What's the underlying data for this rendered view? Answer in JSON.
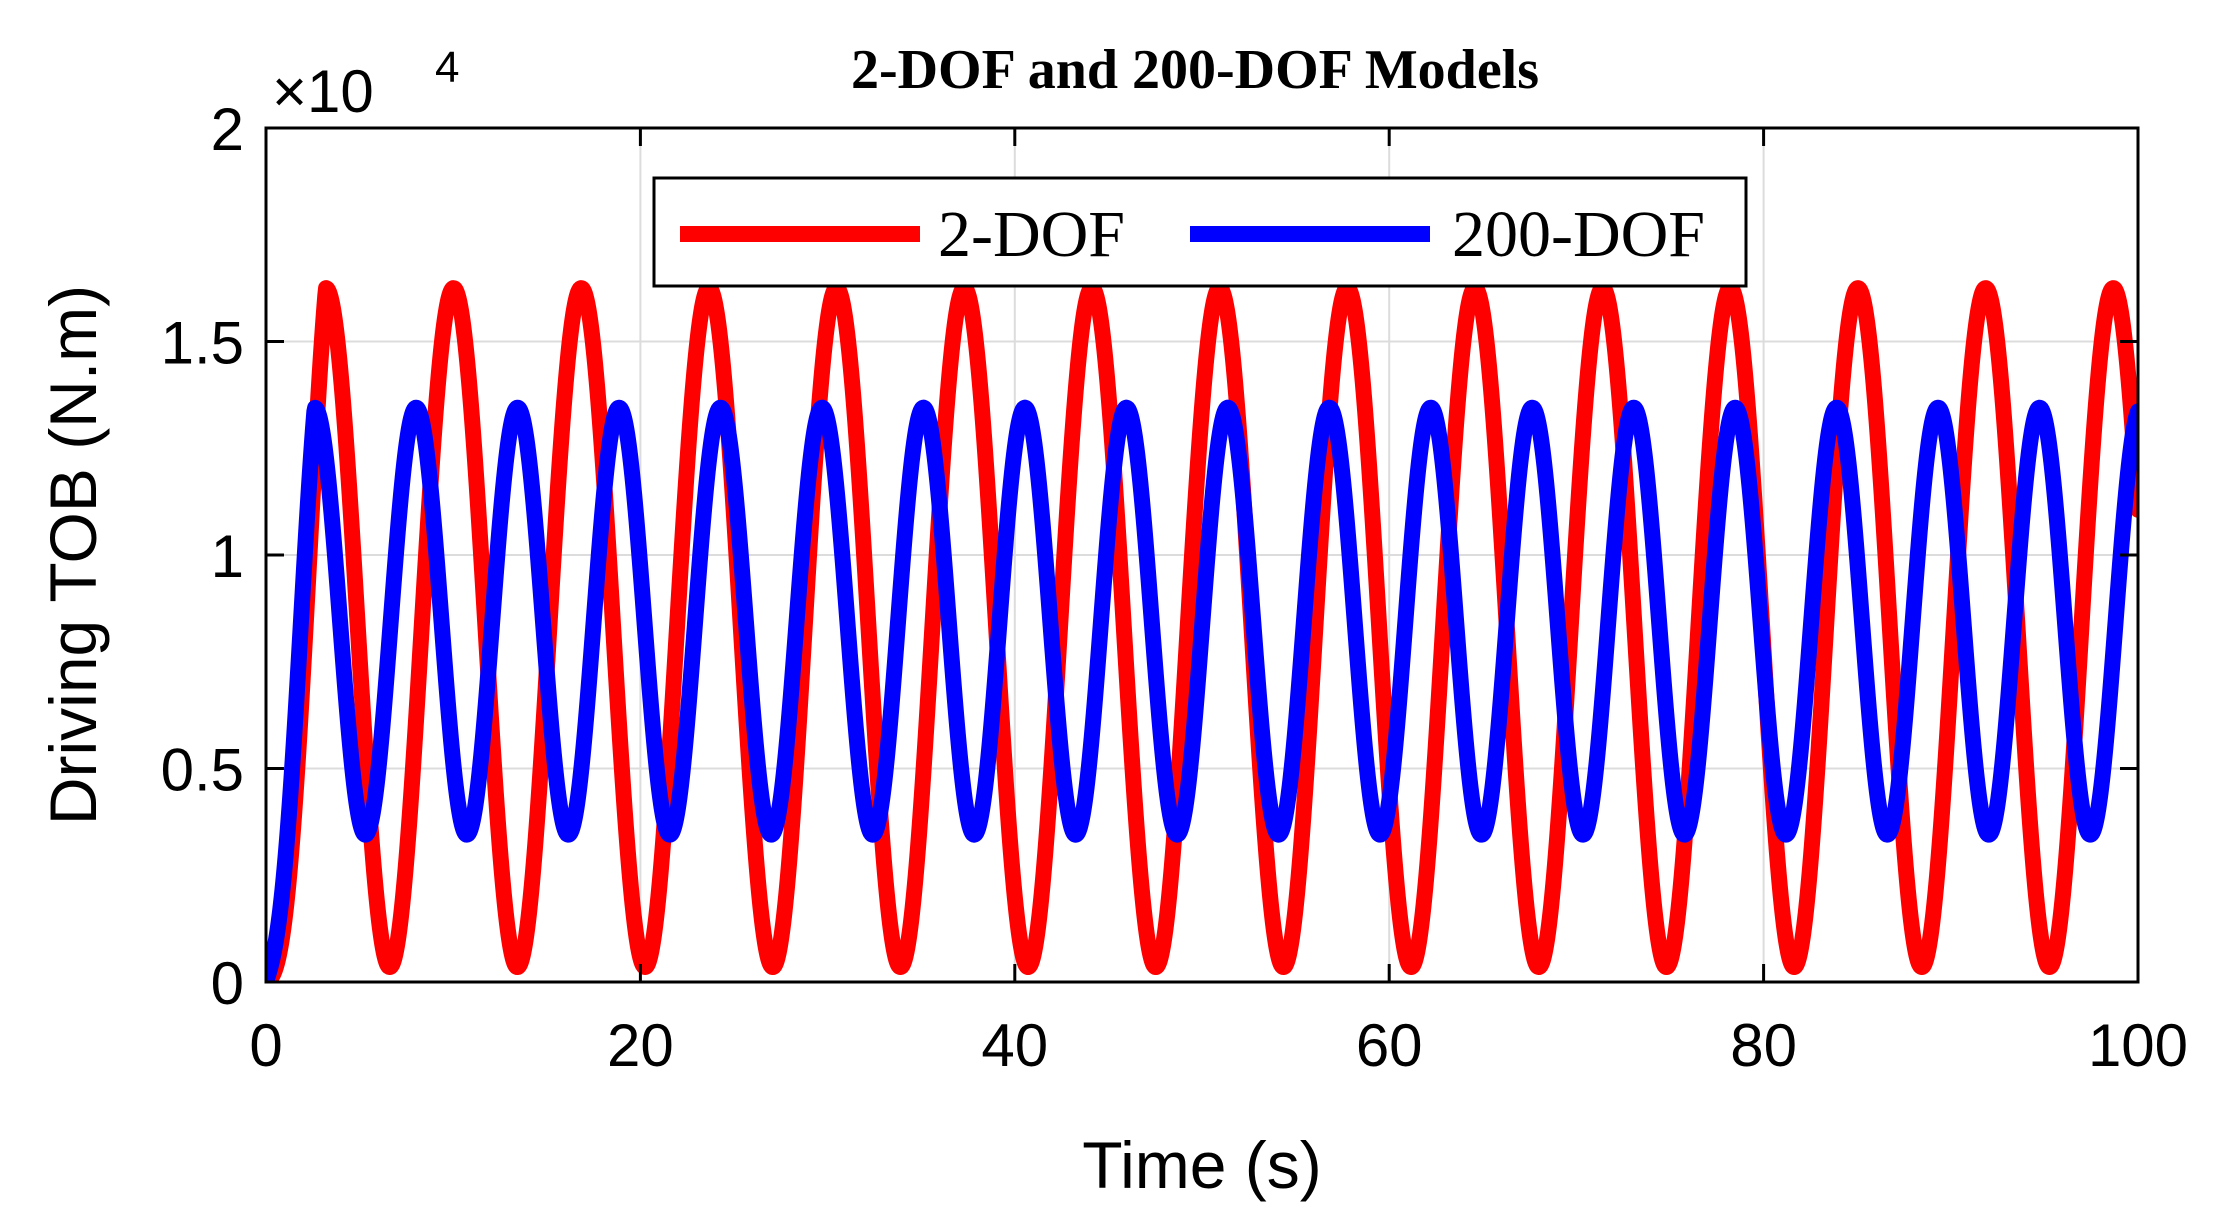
{
  "chart_data": {
    "type": "line",
    "title": "2-DOF and 200-DOF Models",
    "xlabel": "Time (s)",
    "ylabel": "Driving TOB (N.m)",
    "xlim": [
      0,
      100
    ],
    "ylim": [
      0,
      20000
    ],
    "y_multiplier_label": "×10",
    "y_multiplier_exponent": "4",
    "xticks": [
      0,
      20,
      40,
      60,
      80,
      100
    ],
    "xtick_labels": [
      "0",
      "20",
      "40",
      "60",
      "80",
      "100"
    ],
    "yticks": [
      0,
      5000,
      10000,
      15000,
      20000
    ],
    "ytick_labels": [
      "0",
      "0.5",
      "1",
      "1.5",
      "2"
    ],
    "grid": true,
    "legend_position": "top-center",
    "series": [
      {
        "name": "2-DOF",
        "color": "#ff0000",
        "model": "sinusoid",
        "mean": 8300,
        "amplitude": 7950,
        "period": 6.82,
        "first_peak_time": 3.2,
        "start_value": 0
      },
      {
        "name": "200-DOF",
        "color": "#0000ff",
        "model": "sinusoid",
        "mean": 8450,
        "amplitude": 5000,
        "period": 5.42,
        "first_peak_time": 2.6,
        "start_value": 0
      }
    ]
  }
}
